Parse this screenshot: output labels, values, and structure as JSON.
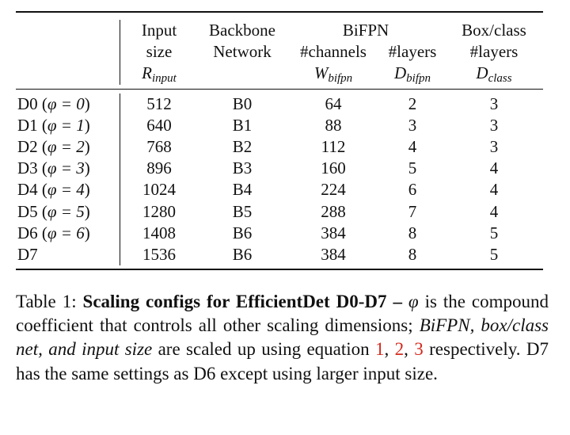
{
  "table": {
    "headers": {
      "input_size_line1": "Input",
      "input_size_line2": "size",
      "input_size_sym": "R",
      "input_size_sub": "input",
      "backbone_line1": "Backbone",
      "backbone_line2": "Network",
      "bifpn_group": "BiFPN",
      "bifpn_channels": "#channels",
      "bifpn_channels_sym": "W",
      "bifpn_channels_sub": "bifpn",
      "bifpn_layers": "#layers",
      "bifpn_layers_sym": "D",
      "bifpn_layers_sub": "bifpn",
      "boxclass_line1": "Box/class",
      "boxclass_line2": "#layers",
      "boxclass_sym": "D",
      "boxclass_sub": "class"
    },
    "rows": [
      {
        "model": "D0 (",
        "phi": "φ = 0",
        "close": ")",
        "input_size": "512",
        "backbone": "B0",
        "channels": "64",
        "bifpn_layers": "2",
        "box_layers": "3"
      },
      {
        "model": "D1 (",
        "phi": "φ = 1",
        "close": ")",
        "input_size": "640",
        "backbone": "B1",
        "channels": "88",
        "bifpn_layers": "3",
        "box_layers": "3"
      },
      {
        "model": "D2 (",
        "phi": "φ = 2",
        "close": ")",
        "input_size": "768",
        "backbone": "B2",
        "channels": "112",
        "bifpn_layers": "4",
        "box_layers": "3"
      },
      {
        "model": "D3 (",
        "phi": "φ = 3",
        "close": ")",
        "input_size": "896",
        "backbone": "B3",
        "channels": "160",
        "bifpn_layers": "5",
        "box_layers": "4"
      },
      {
        "model": "D4 (",
        "phi": "φ = 4",
        "close": ")",
        "input_size": "1024",
        "backbone": "B4",
        "channels": "224",
        "bifpn_layers": "6",
        "box_layers": "4"
      },
      {
        "model": "D5 (",
        "phi": "φ = 5",
        "close": ")",
        "input_size": "1280",
        "backbone": "B5",
        "channels": "288",
        "bifpn_layers": "7",
        "box_layers": "4"
      },
      {
        "model": "D6 (",
        "phi": "φ = 6",
        "close": ")",
        "input_size": "1408",
        "backbone": "B6",
        "channels": "384",
        "bifpn_layers": "8",
        "box_layers": "5"
      },
      {
        "model": "D7",
        "phi": "",
        "close": "",
        "input_size": "1536",
        "backbone": "B6",
        "channels": "384",
        "bifpn_layers": "8",
        "box_layers": "5"
      }
    ]
  },
  "caption": {
    "label": "Table 1: ",
    "bold_title": "Scaling configs for EfficientDet D0-D7 – ",
    "phi": "φ",
    "text1": " is the compound coefficient that controls all other scaling dimensions; ",
    "italic": "BiFPN, box/class net, and input size",
    "text2": " are scaled up using equation ",
    "ref1": "1",
    "sep1": ", ",
    "ref2": "2",
    "sep2": ", ",
    "ref3": "3",
    "text3": " respectively. D7 has the same settings as D6 except using larger input size.",
    "ref_color": "#d42a1e"
  }
}
